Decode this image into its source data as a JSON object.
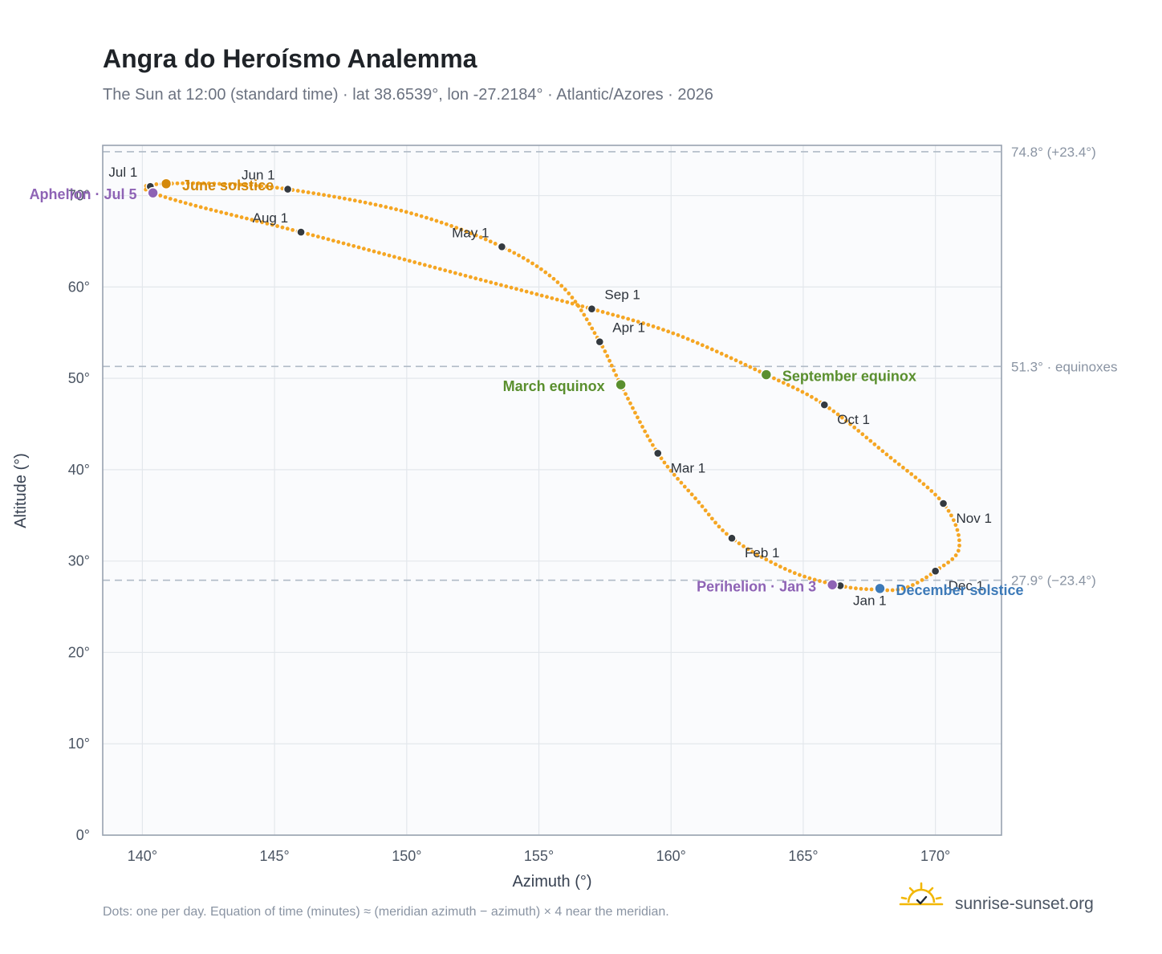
{
  "title": "Angra do Heroísmo Analemma",
  "subtitle": "The Sun at 12:00 (standard time) · lat 38.6539°, lon -27.2184° · Atlantic/Azores · 2026",
  "footnote": "Dots: one per day. Equation of time (minutes) ≈ (meridian azimuth − azimuth) × 4 near the meridian.",
  "brand": "sunrise-sunset.org",
  "colors": {
    "curve": "#f5a623",
    "month_dot": "#343a40",
    "equinox": "#5a8f2e",
    "june_solstice": "#d4890a",
    "december_solstice": "#3d7ab8",
    "apsis": "#8e63b5",
    "reference_line": "#b0bac6",
    "plot_bg": "#fafbfd",
    "grid": "#e3e7ec",
    "frame": "#98a2b0"
  },
  "chart_data": {
    "type": "scatter",
    "title": "Angra do Heroísmo Analemma",
    "xlabel": "Azimuth (°)",
    "ylabel": "Altitude (°)",
    "xlim": [
      138.5,
      172.5
    ],
    "ylim": [
      0,
      75.5
    ],
    "grid": true,
    "x_ticks": [
      {
        "value": 140,
        "label": "140°"
      },
      {
        "value": 145,
        "label": "145°"
      },
      {
        "value": 150,
        "label": "150°"
      },
      {
        "value": 155,
        "label": "155°"
      },
      {
        "value": 160,
        "label": "160°"
      },
      {
        "value": 165,
        "label": "165°"
      },
      {
        "value": 170,
        "label": "170°"
      }
    ],
    "y_ticks": [
      {
        "value": 0,
        "label": "0°"
      },
      {
        "value": 10,
        "label": "10°"
      },
      {
        "value": 20,
        "label": "20°"
      },
      {
        "value": 30,
        "label": "30°"
      },
      {
        "value": 40,
        "label": "40°"
      },
      {
        "value": 50,
        "label": "50°"
      },
      {
        "value": 60,
        "label": "60°"
      },
      {
        "value": 70,
        "label": "70°"
      }
    ],
    "reference_lines": [
      {
        "y": 74.8,
        "label": "74.8° (+23.4°)"
      },
      {
        "y": 51.3,
        "label": "51.3° · equinoxes"
      },
      {
        "y": 27.9,
        "label": "27.9° (−23.4°)"
      }
    ],
    "path_points": [
      {
        "x": 166.4,
        "y": 27.3
      },
      {
        "x": 167.6,
        "y": 26.9
      },
      {
        "x": 168.8,
        "y": 27.0
      },
      {
        "x": 170.0,
        "y": 28.9
      },
      {
        "x": 170.9,
        "y": 31.5
      },
      {
        "x": 170.3,
        "y": 36.3
      },
      {
        "x": 168.1,
        "y": 41.8
      },
      {
        "x": 165.8,
        "y": 47.1
      },
      {
        "x": 163.6,
        "y": 50.4
      },
      {
        "x": 160.2,
        "y": 54.8
      },
      {
        "x": 157.0,
        "y": 57.6
      },
      {
        "x": 152.0,
        "y": 61.4
      },
      {
        "x": 146.0,
        "y": 66.0
      },
      {
        "x": 142.0,
        "y": 68.9
      },
      {
        "x": 140.4,
        "y": 70.3
      },
      {
        "x": 140.1,
        "y": 71.0
      },
      {
        "x": 140.9,
        "y": 71.3
      },
      {
        "x": 142.8,
        "y": 71.3
      },
      {
        "x": 145.5,
        "y": 70.7
      },
      {
        "x": 150.0,
        "y": 68.2
      },
      {
        "x": 153.6,
        "y": 64.4
      },
      {
        "x": 155.9,
        "y": 60.0
      },
      {
        "x": 157.3,
        "y": 54.0
      },
      {
        "x": 158.1,
        "y": 49.3
      },
      {
        "x": 159.5,
        "y": 41.8
      },
      {
        "x": 161.0,
        "y": 36.6
      },
      {
        "x": 162.3,
        "y": 32.5
      },
      {
        "x": 164.5,
        "y": 28.9
      },
      {
        "x": 166.4,
        "y": 27.3
      }
    ],
    "months": [
      {
        "label": "Jan 1",
        "x": 166.4,
        "y": 27.3,
        "anchor": "start",
        "dx": 16,
        "dy": 24
      },
      {
        "label": "Feb 1",
        "x": 162.3,
        "y": 32.5,
        "anchor": "start",
        "dx": 16,
        "dy": 24
      },
      {
        "label": "Mar 1",
        "x": 159.5,
        "y": 41.8,
        "anchor": "start",
        "dx": 16,
        "dy": 24
      },
      {
        "label": "Apr 1",
        "x": 157.3,
        "y": 54.0,
        "anchor": "start",
        "dx": 16,
        "dy": -12
      },
      {
        "label": "May 1",
        "x": 153.6,
        "y": 64.4,
        "anchor": "end",
        "dx": -16,
        "dy": -12
      },
      {
        "label": "Jun 1",
        "x": 145.5,
        "y": 70.7,
        "anchor": "end",
        "dx": -16,
        "dy": -12
      },
      {
        "label": "Jul 1",
        "x": 140.3,
        "y": 71.0,
        "anchor": "end",
        "dx": -16,
        "dy": -12
      },
      {
        "label": "Aug 1",
        "x": 146.0,
        "y": 66.0,
        "anchor": "end",
        "dx": -16,
        "dy": -12
      },
      {
        "label": "Sep 1",
        "x": 157.0,
        "y": 57.6,
        "anchor": "start",
        "dx": 16,
        "dy": -12
      },
      {
        "label": "Oct 1",
        "x": 165.8,
        "y": 47.1,
        "anchor": "start",
        "dx": 16,
        "dy": 24
      },
      {
        "label": "Nov 1",
        "x": 170.3,
        "y": 36.3,
        "anchor": "start",
        "dx": 16,
        "dy": 24
      },
      {
        "label": "Dec 1",
        "x": 170.0,
        "y": 28.9,
        "anchor": "start",
        "dx": 16,
        "dy": 24
      }
    ],
    "events": [
      {
        "label": "March equinox",
        "x": 158.1,
        "y": 49.3,
        "color": "#5a8f2e",
        "anchor": "end",
        "dx": -20,
        "dy": 8
      },
      {
        "label": "September equinox",
        "x": 163.6,
        "y": 50.4,
        "color": "#5a8f2e",
        "anchor": "start",
        "dx": 20,
        "dy": 8
      },
      {
        "label": "June solstice",
        "x": 140.9,
        "y": 71.3,
        "color": "#d4890a",
        "anchor": "start",
        "dx": 20,
        "dy": 8
      },
      {
        "label": "December solstice",
        "x": 167.9,
        "y": 27.0,
        "color": "#3d7ab8",
        "anchor": "start",
        "dx": 20,
        "dy": 8
      },
      {
        "label": "Perihelion · Jan 3",
        "x": 166.1,
        "y": 27.4,
        "color": "#8e63b5",
        "anchor": "end",
        "dx": -20,
        "dy": 8
      },
      {
        "label": "Aphelion · Jul 5",
        "x": 140.4,
        "y": 70.3,
        "color": "#8e63b5",
        "anchor": "end",
        "dx": -20,
        "dy": 8
      }
    ]
  }
}
